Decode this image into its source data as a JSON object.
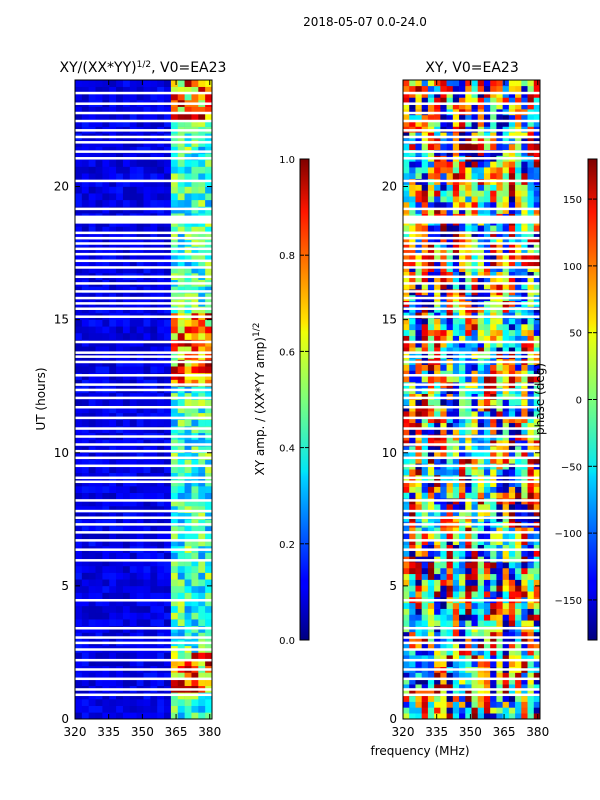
{
  "suptitle": "2018-05-07 0.0-24.0",
  "chart_data": [
    {
      "type": "heatmap",
      "title": "XY/(XX*YY)^1/2, V0=EA23",
      "title_main": "XY/(XX*YY)",
      "title_exp": "1/2",
      "title_suffix": ", V0=EA23",
      "xlabel": "",
      "ylabel": "UT (hours)",
      "xlim": [
        320,
        381
      ],
      "ylim": [
        0,
        24
      ],
      "xticks": [
        320,
        335,
        350,
        365,
        380
      ],
      "yticks": [
        0,
        5,
        10,
        15,
        20
      ],
      "colorbar": {
        "label_main": "XY amp. / (XX*YY amp)",
        "label_exp": "1/2",
        "range": [
          0.0,
          1.0
        ],
        "ticks": [
          "0.0",
          "0.2",
          "0.4",
          "0.6",
          "0.8",
          "1.0"
        ],
        "tick_values": [
          0.0,
          0.2,
          0.4,
          0.6,
          0.8,
          1.0
        ]
      },
      "gaps_ut": [
        0.9,
        1.1,
        1.5,
        1.85,
        2.2,
        2.6,
        2.85,
        3.05,
        3.4,
        4.45,
        5.95,
        6.35,
        6.7,
        7.0,
        7.3,
        7.55,
        7.8,
        8.2,
        8.9,
        9.05,
        9.5,
        9.8,
        10.05,
        10.3,
        10.6,
        10.9,
        11.3,
        11.7,
        12.05,
        12.35,
        12.55,
        12.9,
        13.4,
        13.6,
        13.75,
        14.15,
        15.1,
        15.4,
        15.6,
        15.8,
        16.05,
        16.35,
        16.6,
        16.95,
        17.2,
        17.45,
        17.65,
        17.85,
        18.05,
        18.25,
        18.7,
        18.75,
        18.85,
        19.15,
        20.2,
        21.05,
        21.3,
        21.65,
        21.85,
        22.1,
        22.45,
        22.75,
        23.1,
        23.5
      ],
      "active_band_mhz": [
        362,
        381
      ]
    },
    {
      "type": "heatmap",
      "title": "XY, V0=EA23",
      "xlabel": "frequency (MHz)",
      "ylabel": "",
      "xlim": [
        320,
        381
      ],
      "ylim": [
        0,
        24
      ],
      "xticks": [
        320,
        335,
        350,
        365,
        380
      ],
      "yticks": [
        0,
        5,
        10,
        15,
        20
      ],
      "colorbar": {
        "label_main": "phase (deg)",
        "range": [
          -180,
          180
        ],
        "ticks": [
          "−150",
          "−100",
          "−50",
          "0",
          "50",
          "100",
          "150"
        ],
        "tick_values": [
          -150,
          -100,
          -50,
          0,
          50,
          100,
          150
        ]
      }
    }
  ]
}
